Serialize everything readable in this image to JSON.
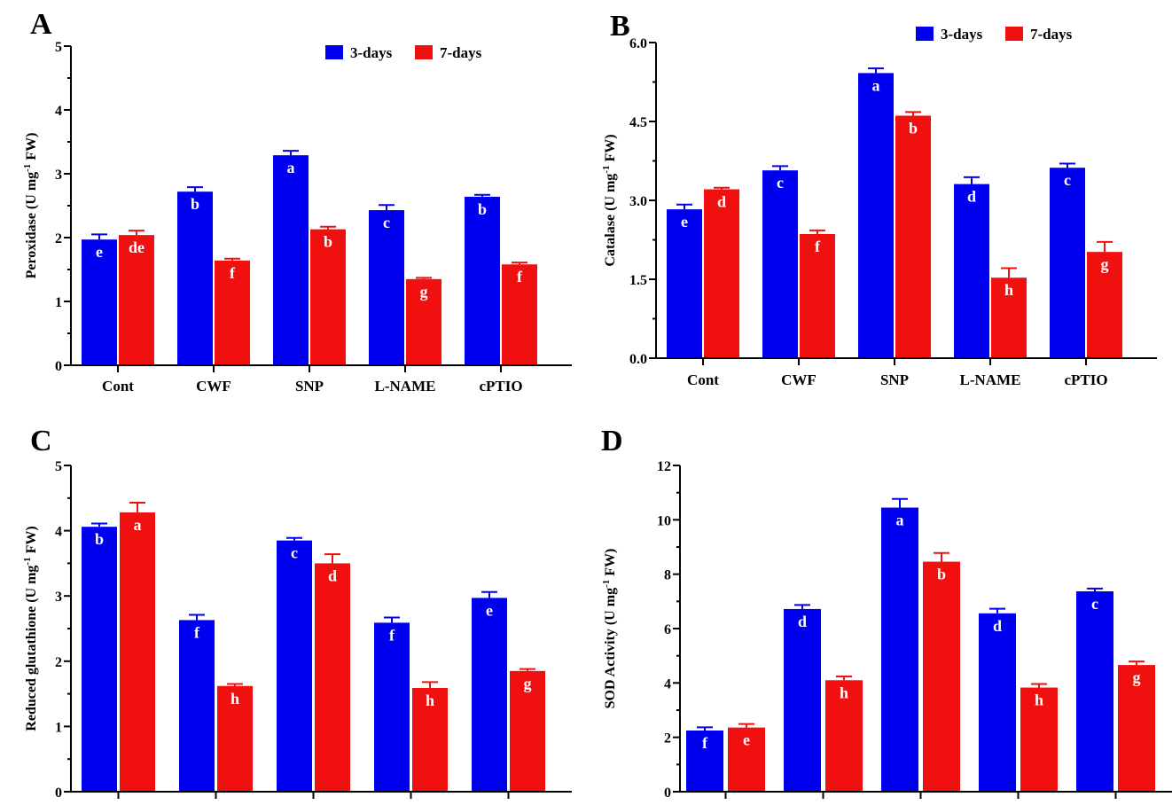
{
  "chart_data": [
    {
      "type": "bar",
      "panel": "A",
      "ylabel": {
        "main": "Peroxidase (U mg",
        "sup": "-1",
        "tail": " FW)"
      },
      "categories": [
        "Cont",
        "CWF",
        "SNP",
        "L-NAME",
        "cPTIO"
      ],
      "ylim": [
        0,
        5
      ],
      "yticks": [
        "0",
        "1",
        "2",
        "3",
        "4",
        "5"
      ],
      "legend": "top-right",
      "series": [
        {
          "name": "3-days",
          "color": "#0000f0",
          "values": [
            1.97,
            2.72,
            3.29,
            2.43,
            2.64
          ],
          "errors": [
            0.08,
            0.07,
            0.07,
            0.08,
            0.03
          ],
          "letters": [
            "e",
            "b",
            "a",
            "c",
            "b"
          ]
        },
        {
          "name": "7-days",
          "color": "#f01010",
          "values": [
            2.04,
            1.64,
            2.13,
            1.35,
            1.58
          ],
          "errors": [
            0.07,
            0.03,
            0.04,
            0.02,
            0.03
          ],
          "letters": [
            "de",
            "f",
            "b",
            "g",
            "f"
          ]
        }
      ]
    },
    {
      "type": "bar",
      "panel": "B",
      "ylabel": {
        "main": "Catalase (U mg",
        "sup": "-1",
        "tail": " FW)"
      },
      "categories": [
        "Cont",
        "CWF",
        "SNP",
        "L-NAME",
        "cPTIO"
      ],
      "ylim": [
        0,
        6
      ],
      "yticks": [
        "0.0",
        "1.5",
        "3.0",
        "4.5",
        "6.0"
      ],
      "legend": "top-right",
      "series": [
        {
          "name": "3-days",
          "color": "#0000f0",
          "values": [
            2.83,
            3.57,
            5.42,
            3.31,
            3.62
          ],
          "errors": [
            0.09,
            0.08,
            0.09,
            0.13,
            0.08
          ],
          "letters": [
            "e",
            "c",
            "a",
            "d",
            "c"
          ]
        },
        {
          "name": "7-days",
          "color": "#f01010",
          "values": [
            3.21,
            2.36,
            4.61,
            1.53,
            2.02
          ],
          "errors": [
            0.03,
            0.07,
            0.07,
            0.18,
            0.19
          ],
          "letters": [
            "d",
            "f",
            "b",
            "h",
            "g"
          ]
        }
      ]
    },
    {
      "type": "bar",
      "panel": "C",
      "ylabel": {
        "main": "Reduced glutathione (U mg",
        "sup": "-1",
        "tail": " FW)"
      },
      "categories": [
        "",
        "",
        "",
        "",
        ""
      ],
      "ylim": [
        0,
        5
      ],
      "yticks": [
        "0",
        "1",
        "2",
        "3",
        "4",
        "5"
      ],
      "series": [
        {
          "name": "",
          "color": "#0000f0",
          "values": [
            4.06,
            2.63,
            3.85,
            2.59,
            2.97
          ],
          "errors": [
            0.05,
            0.08,
            0.04,
            0.08,
            0.09
          ],
          "letters": [
            "b",
            "f",
            "c",
            "f",
            "e"
          ]
        },
        {
          "name": "",
          "color": "#f01010",
          "values": [
            4.28,
            1.62,
            3.5,
            1.59,
            1.85
          ],
          "errors": [
            0.15,
            0.03,
            0.14,
            0.09,
            0.03
          ],
          "letters": [
            "a",
            "h",
            "d",
            "h",
            "g"
          ]
        }
      ]
    },
    {
      "type": "bar",
      "panel": "D",
      "ylabel": {
        "main": "SOD Activity (U mg",
        "sup": "-1",
        "tail": " FW)"
      },
      "categories": [
        "",
        "",
        "",
        "",
        ""
      ],
      "ylim": [
        0,
        12
      ],
      "yticks": [
        "0",
        "2",
        "4",
        "6",
        "8",
        "10",
        "12"
      ],
      "series": [
        {
          "name": "",
          "color": "#0000f0",
          "values": [
            2.25,
            6.72,
            10.45,
            6.56,
            7.37
          ],
          "errors": [
            0.12,
            0.15,
            0.32,
            0.17,
            0.1
          ],
          "letters": [
            "f",
            "d",
            "a",
            "d",
            "c"
          ]
        },
        {
          "name": "",
          "color": "#f01010",
          "values": [
            2.36,
            4.1,
            8.46,
            3.83,
            4.66
          ],
          "errors": [
            0.13,
            0.14,
            0.32,
            0.13,
            0.13
          ],
          "letters": [
            "e",
            "h",
            "b",
            "h",
            "g"
          ]
        }
      ]
    }
  ]
}
